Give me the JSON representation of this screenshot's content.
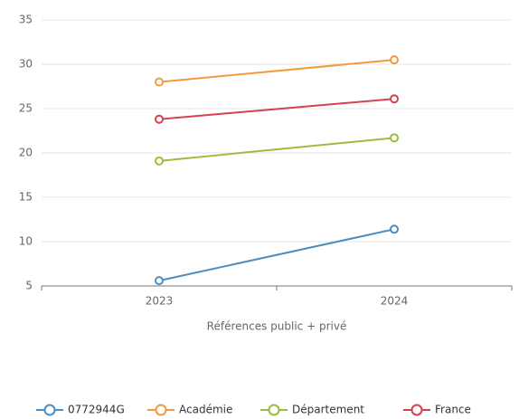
{
  "chart_data": {
    "type": "line",
    "x_label": "Références public + privé",
    "categories": [
      "2023",
      "2024"
    ],
    "series": [
      {
        "name": "0772944G",
        "color": "#4a8ec2",
        "values": [
          5.6,
          11.4
        ]
      },
      {
        "name": "Académie",
        "color": "#f59a3c",
        "values": [
          28,
          30.5
        ]
      },
      {
        "name": "Département",
        "color": "#9cbd3d",
        "values": [
          19.1,
          21.7
        ]
      },
      {
        "name": "France",
        "color": "#d6414e",
        "values": [
          23.8,
          26.1
        ]
      }
    ],
    "ylim": [
      5,
      35
    ],
    "yticks": [
      5,
      10,
      15,
      20,
      25,
      30,
      35
    ],
    "grid": true,
    "legend": "bottom"
  }
}
